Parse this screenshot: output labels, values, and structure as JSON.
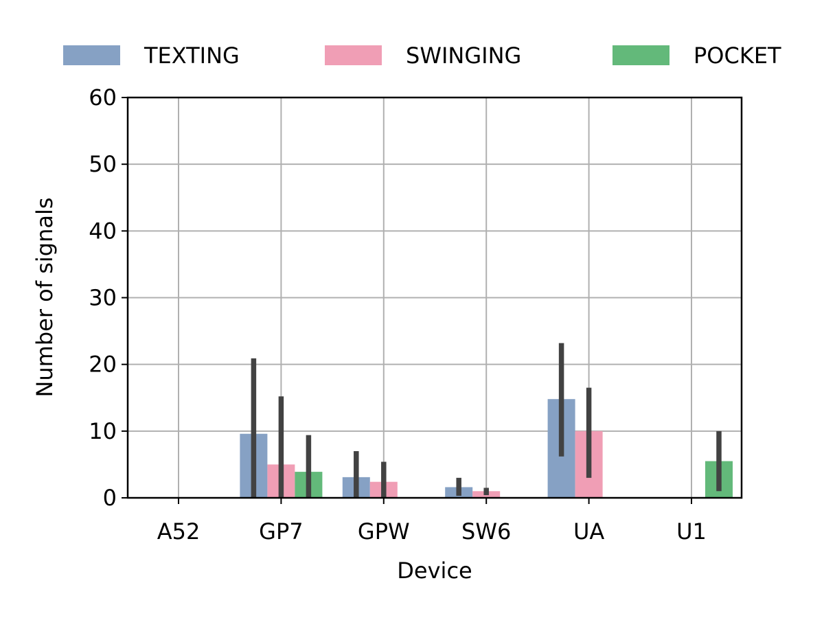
{
  "chart_data": {
    "type": "bar",
    "title": "",
    "xlabel": "Device",
    "ylabel": "Number of signals",
    "categories": [
      "A52",
      "GP7",
      "GPW",
      "SW6",
      "UA",
      "U1"
    ],
    "ylim": [
      0,
      60
    ],
    "yticks": [
      0,
      10,
      20,
      30,
      40,
      50,
      60
    ],
    "grid": true,
    "legend_position": "top",
    "series": [
      {
        "name": "TEXTING",
        "color": "#86a1c4",
        "values": [
          0,
          9.6,
          3.1,
          1.6,
          14.8,
          0
        ],
        "error_low": [
          0,
          0,
          0,
          0.3,
          6.2,
          0
        ],
        "error_high": [
          0,
          20.9,
          7.0,
          3.0,
          23.2,
          0
        ]
      },
      {
        "name": "SWINGING",
        "color": "#f09eb5",
        "values": [
          0,
          5.0,
          2.4,
          1.0,
          10.0,
          0
        ],
        "error_low": [
          0,
          0,
          0,
          0.4,
          3.0,
          0
        ],
        "error_high": [
          0,
          15.2,
          5.4,
          1.5,
          16.5,
          0
        ]
      },
      {
        "name": "POCKET",
        "color": "#63b97a",
        "values": [
          0,
          3.9,
          0,
          0,
          0,
          5.5
        ],
        "error_low": [
          0,
          0,
          0,
          0,
          0,
          1.0
        ],
        "error_high": [
          0,
          9.4,
          0,
          0,
          0,
          10.0
        ]
      }
    ]
  }
}
